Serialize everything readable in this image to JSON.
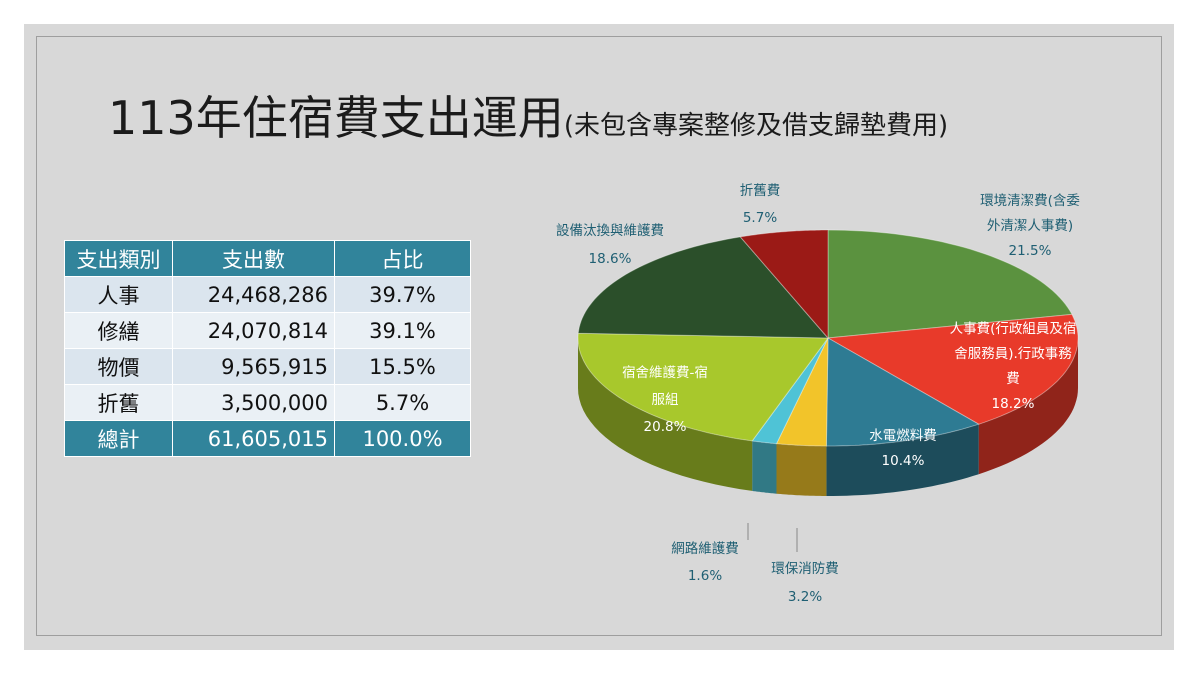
{
  "title": {
    "main": "113年住宿費支出運用",
    "sub": "(未包含專案整修及借支歸墊費用)"
  },
  "table": {
    "headers": [
      "支出類別",
      "支出數",
      "占比"
    ],
    "rows": [
      [
        "人事",
        "24,468,286",
        "39.7%"
      ],
      [
        "修繕",
        "24,070,814",
        "39.1%"
      ],
      [
        "物價",
        "9,565,915",
        "15.5%"
      ],
      [
        "折舊",
        "3,500,000",
        "5.7%"
      ]
    ],
    "total": [
      "總計",
      "61,605,015",
      "100.0%"
    ]
  },
  "chart_data": {
    "type": "pie",
    "slices": [
      {
        "label": "環境清潔費(含委外清潔人事費)",
        "value": 21.5,
        "value_label": "21.5%",
        "color": "#5b923f"
      },
      {
        "label": "人事費(行政組員及宿舍服務員).行政事務費",
        "value": 18.2,
        "value_label": "18.2%",
        "color": "#e83a2a"
      },
      {
        "label": "水電燃料費",
        "value": 10.4,
        "value_label": "10.4%",
        "color": "#2e7b93"
      },
      {
        "label": "環保消防費",
        "value": 3.2,
        "value_label": "3.2%",
        "color": "#f2c42a"
      },
      {
        "label": "網路維護費",
        "value": 1.6,
        "value_label": "1.6%",
        "color": "#4fc3d6"
      },
      {
        "label": "宿舍維護費-宿服組",
        "value": 20.8,
        "value_label": "20.8%",
        "color": "#a8c82c"
      },
      {
        "label": "設備汰換與維護費",
        "value": 18.6,
        "value_label": "18.6%",
        "color": "#2b4f2a"
      },
      {
        "label": "折舊費",
        "value": 5.7,
        "value_label": "5.7%",
        "color": "#9b1a16"
      }
    ]
  }
}
